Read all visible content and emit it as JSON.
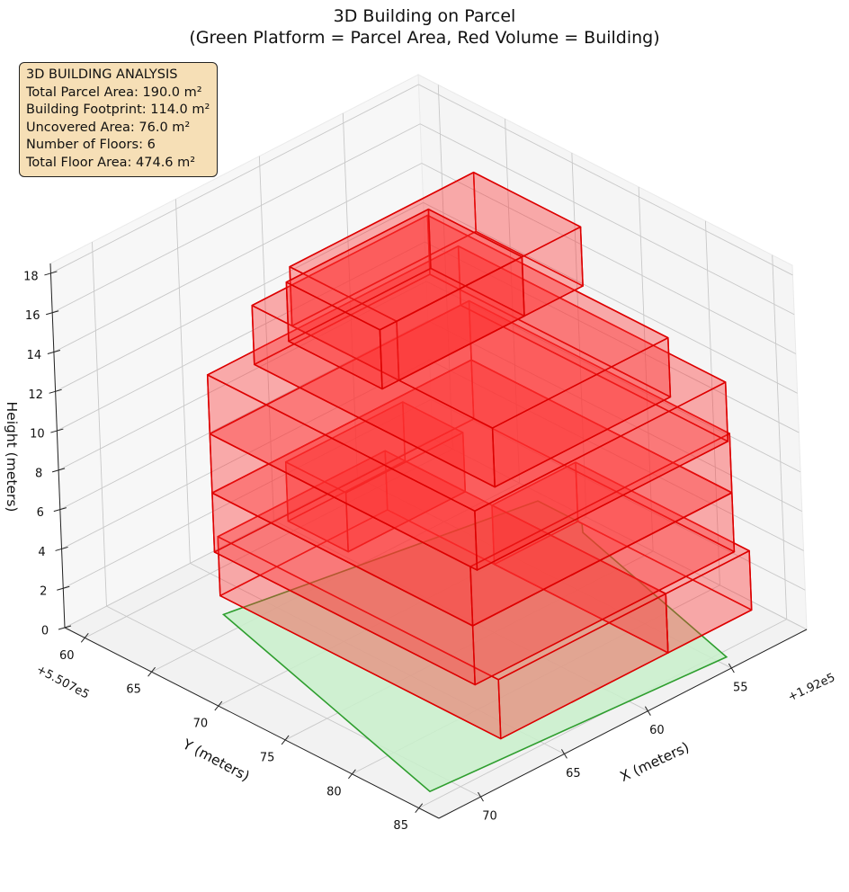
{
  "chart_data": {
    "type": "3d-bar",
    "title_lines": [
      "3D Building on Parcel",
      "(Green Platform = Parcel Area, Red Volume = Building)"
    ],
    "xlabel": "X (meters)",
    "ylabel": "Y (meters)",
    "zlabel": "Height (meters)",
    "x_offset_label": "+1.92e5",
    "y_offset_label": "+5.507e5",
    "x_ticks": [
      55,
      60,
      65,
      70
    ],
    "y_ticks": [
      60,
      65,
      70,
      75,
      80,
      85
    ],
    "z_ticks": [
      0,
      2,
      4,
      6,
      8,
      10,
      12,
      14,
      16,
      18
    ],
    "xlim": [
      50.5,
      72.5
    ],
    "ylim": [
      58.5,
      86.5
    ],
    "zlim": [
      0,
      18.5
    ],
    "grid": true,
    "info_box": [
      "3D BUILDING ANALYSIS",
      "Total Parcel Area: 190.0 m²",
      "Building Footprint: 114.0 m²",
      "Uncovered Area: 76.0 m²",
      "Number of Floors: 6",
      "Total Floor Area: 474.6 m²"
    ],
    "colors": {
      "parcel_fill": "#c9f0cb",
      "parcel_edge": "#2e9e2e",
      "building_fill": "#ff3030",
      "building_edge": "#dd0000",
      "info_box_fill": "#f6dfb6"
    },
    "parcel": [
      [
        51,
        67
      ],
      [
        67,
        63.5
      ],
      [
        71.2,
        84.2
      ],
      [
        54.5,
        85.5
      ],
      [
        51.5,
        71
      ],
      [
        51,
        70.3
      ]
    ],
    "floors": [
      {
        "floor": 1,
        "z0": 0,
        "z1": 3,
        "blocks": [
          {
            "x": [
              56,
              66
            ],
            "y": [
              62,
              83
            ]
          },
          {
            "x": [
              51,
              56
            ],
            "y": [
              70,
              83
            ]
          }
        ]
      },
      {
        "floor": 2,
        "z0": 3,
        "z1": 6,
        "blocks": [
          {
            "x": [
              51.5,
              67
            ],
            "y": [
              63,
              82.5
            ]
          },
          {
            "x": [
              56,
              63
            ],
            "y": [
              63.5,
              68
            ]
          }
        ]
      },
      {
        "floor": 3,
        "z0": 6,
        "z1": 9,
        "blocks": [
          {
            "x": [
              51.5,
              67
            ],
            "y": [
              63,
              82.5
            ]
          }
        ]
      },
      {
        "floor": 4,
        "z0": 9,
        "z1": 12,
        "blocks": [
          {
            "x": [
              52,
              67
            ],
            "y": [
              63,
              83
            ]
          }
        ]
      },
      {
        "floor": 5,
        "z0": 12,
        "z1": 15,
        "blocks": [
          {
            "x": [
              54.5,
              65
            ],
            "y": [
              64,
              82
            ]
          }
        ]
      },
      {
        "floor": 6,
        "z0": 15,
        "z1": 18,
        "blocks": [
          {
            "x": [
              54,
              65
            ],
            "y": [
              67,
              75
            ]
          },
          {
            "x": [
              57.5,
              66
            ],
            "y": [
              68,
              75
            ]
          }
        ]
      }
    ]
  }
}
